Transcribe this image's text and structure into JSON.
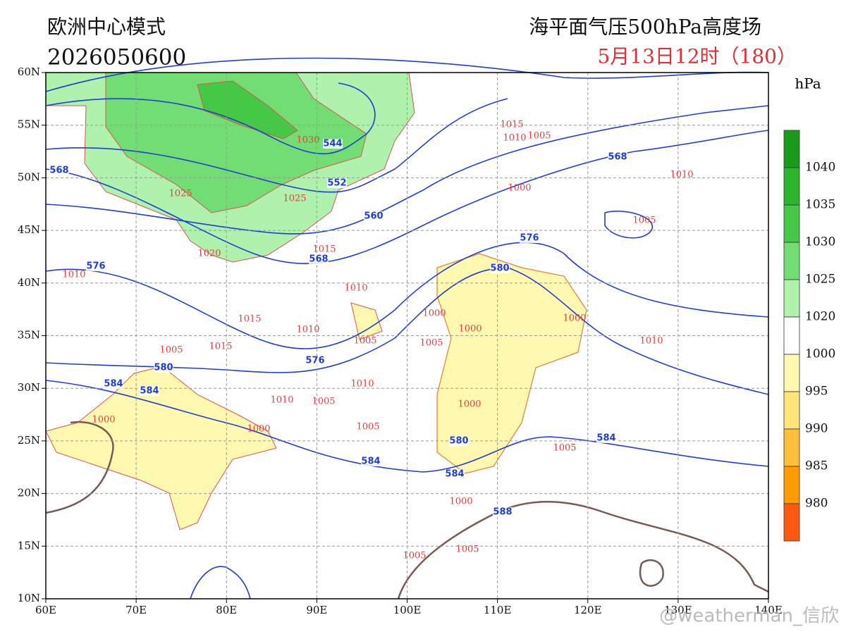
{
  "header": {
    "model": "欧洲中心模式",
    "run": "2026050600",
    "field": "海平面气压500hPa高度场",
    "valid": "5月13日12时（180）"
  },
  "map": {
    "lat_labels": [
      "60N",
      "55N",
      "50N",
      "45N",
      "40N",
      "35N",
      "30N",
      "25N",
      "20N",
      "15N",
      "10N"
    ],
    "lon_labels": [
      "60E",
      "70E",
      "80E",
      "90E",
      "100E",
      "110E",
      "120E",
      "130E",
      "140E"
    ]
  },
  "colorbar": {
    "unit": "hPa",
    "labels": [
      "1040",
      "1035",
      "1030",
      "1025",
      "1020",
      "1000",
      "995",
      "990",
      "985",
      "980"
    ],
    "colors": [
      "#1a9a1a",
      "#2db52d",
      "#45c845",
      "#72dd72",
      "#aef2ae",
      "#ffffff",
      "#fff8b0",
      "#ffe57a",
      "#ffbf3a",
      "#ff9c00",
      "#ff5a10"
    ]
  },
  "height_labels": [
    "544",
    "552",
    "560",
    "568",
    "568",
    "568",
    "576",
    "576",
    "576",
    "580",
    "580",
    "580",
    "584",
    "584",
    "584",
    "584",
    "584",
    "588"
  ],
  "pressure_labels": [
    "1030",
    "1025",
    "1025",
    "1020",
    "1015",
    "1015",
    "1010",
    "1005",
    "1000",
    "1005",
    "1010",
    "1010",
    "1010",
    "1015",
    "1010",
    "1005",
    "1015",
    "1000",
    "1010",
    "1000",
    "1000",
    "1005",
    "1005",
    "1010",
    "1005",
    "1010",
    "1000",
    "1000",
    "1005",
    "1000",
    "1000",
    "1005",
    "1005",
    "1005"
  ],
  "watermark": "@weatherman_信欣"
}
